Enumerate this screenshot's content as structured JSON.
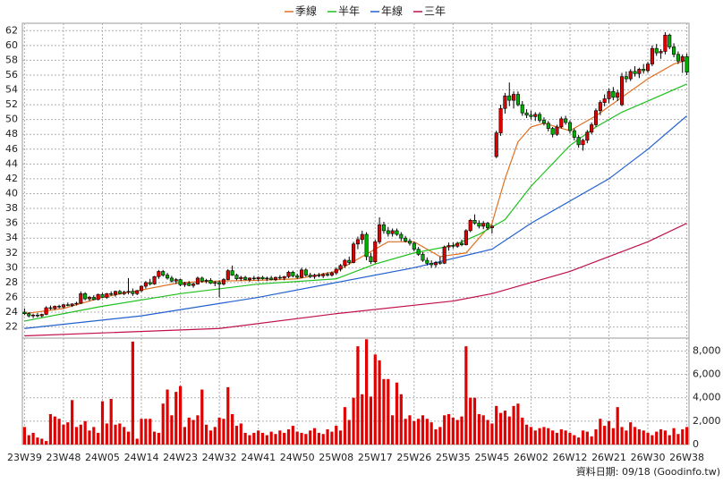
{
  "chart_data": {
    "type": "candlestick",
    "up_color": "#e00000",
    "down_color": "#00b000",
    "categories": [
      "23W39",
      null,
      null,
      null,
      null,
      null,
      null,
      null,
      null,
      "23W48",
      null,
      null,
      null,
      null,
      null,
      null,
      null,
      null,
      "24W05",
      null,
      null,
      null,
      null,
      null,
      null,
      null,
      null,
      "24W14",
      null,
      null,
      null,
      null,
      null,
      null,
      null,
      null,
      "24W23",
      null,
      null,
      null,
      null,
      null,
      null,
      null,
      null,
      "24W32",
      null,
      null,
      null,
      null,
      null,
      null,
      null,
      null,
      "24W41",
      null,
      null,
      null,
      null,
      null,
      null,
      null,
      null,
      "24W50",
      null,
      null,
      null,
      null,
      null,
      null,
      null,
      null,
      "25W08",
      null,
      null,
      null,
      null,
      null,
      null,
      null,
      null,
      "25W17",
      null,
      null,
      null,
      null,
      null,
      null,
      null,
      null,
      "25W26",
      null,
      null,
      null,
      null,
      null,
      null,
      null,
      null,
      "25W35",
      null,
      null,
      null,
      null,
      null,
      null,
      null,
      null,
      "25W45",
      null,
      null,
      null,
      null,
      null,
      null,
      null,
      null,
      "26W02",
      null,
      null,
      null,
      null,
      null,
      null,
      null,
      null,
      "26W12",
      null,
      null,
      null,
      null,
      null,
      null,
      null,
      null,
      "26W21",
      null,
      null,
      null,
      null,
      null,
      null,
      null,
      null,
      "26W30",
      null,
      null,
      null,
      null,
      null,
      null,
      null,
      null,
      "26W38"
    ],
    "ohlc": [
      [
        24,
        24.5,
        23.6,
        23.8
      ],
      [
        23.8,
        24,
        23.3,
        23.5
      ],
      [
        23.5,
        23.8,
        23.2,
        23.6
      ],
      [
        23.6,
        23.9,
        23.3,
        23.5
      ],
      [
        23.5,
        23.8,
        23.3,
        23.7
      ],
      [
        23.7,
        24.8,
        23.6,
        24.6
      ],
      [
        24.6,
        24.9,
        24.3,
        24.5
      ],
      [
        24.5,
        24.9,
        24.3,
        24.8
      ],
      [
        24.8,
        25,
        24.5,
        24.7
      ],
      [
        24.7,
        25.1,
        24.5,
        25
      ],
      [
        25,
        25.3,
        24.8,
        24.9
      ],
      [
        24.9,
        25.2,
        24.7,
        25.1
      ],
      [
        25.1,
        25.4,
        24.9,
        25.2
      ],
      [
        25.2,
        26.8,
        25.1,
        26.5
      ],
      [
        26.5,
        26.7,
        25.6,
        25.8
      ],
      [
        25.8,
        26.2,
        25.5,
        26
      ],
      [
        26,
        26.3,
        25.6,
        25.7
      ],
      [
        25.7,
        26.5,
        25.6,
        26.4
      ],
      [
        26.4,
        26.6,
        25.9,
        26
      ],
      [
        26,
        26.6,
        25.8,
        26.5
      ],
      [
        26.5,
        26.8,
        26.2,
        26.4
      ],
      [
        26.4,
        26.9,
        26.1,
        26.8
      ],
      [
        26.8,
        27,
        26.4,
        26.5
      ],
      [
        26.5,
        26.9,
        26.3,
        26.7
      ],
      [
        26.7,
        28.6,
        26.4,
        26.8
      ],
      [
        26.8,
        27.2,
        26.2,
        26.5
      ],
      [
        26.5,
        27,
        26.3,
        26.9
      ],
      [
        26.9,
        27.6,
        26.7,
        27.5
      ],
      [
        27.5,
        28.2,
        27.2,
        28
      ],
      [
        28,
        28.5,
        27.6,
        27.8
      ],
      [
        27.8,
        28.9,
        27.7,
        28.8
      ],
      [
        28.8,
        29.7,
        28.5,
        29.5
      ],
      [
        29.5,
        29.7,
        28.8,
        29
      ],
      [
        29,
        29.3,
        28.4,
        28.6
      ],
      [
        28.6,
        28.9,
        28,
        28.2
      ],
      [
        28.2,
        28.6,
        27.8,
        28.4
      ],
      [
        28.4,
        28.5,
        27.5,
        27.7
      ],
      [
        27.7,
        28.1,
        27.4,
        27.9
      ],
      [
        27.9,
        28.2,
        27.5,
        27.6
      ],
      [
        27.6,
        28,
        27.3,
        27.8
      ],
      [
        27.8,
        28.8,
        27.7,
        28.6
      ],
      [
        28.6,
        28.8,
        28,
        28.2
      ],
      [
        28.2,
        28.5,
        27.9,
        28.3
      ],
      [
        28.3,
        28.6,
        27.8,
        27.9
      ],
      [
        27.9,
        28.2,
        27.5,
        28
      ],
      [
        28,
        28.3,
        26,
        27.8
      ],
      [
        27.8,
        28.6,
        27.6,
        28.4
      ],
      [
        28.4,
        29.8,
        28.3,
        29.6
      ],
      [
        29.6,
        30.3,
        28.9,
        29
      ],
      [
        29,
        29.2,
        28.3,
        28.5
      ],
      [
        28.5,
        28.9,
        28.2,
        28.7
      ],
      [
        28.7,
        28.9,
        28.3,
        28.4
      ],
      [
        28.4,
        28.7,
        28.1,
        28.6
      ],
      [
        28.6,
        28.9,
        28.3,
        28.5
      ],
      [
        28.5,
        28.8,
        28.2,
        28.7
      ],
      [
        28.7,
        28.9,
        28.4,
        28.5
      ],
      [
        28.5,
        28.8,
        28.2,
        28.6
      ],
      [
        28.6,
        28.9,
        28.3,
        28.4
      ],
      [
        28.4,
        28.8,
        28.2,
        28.7
      ],
      [
        28.7,
        29,
        28.4,
        28.6
      ],
      [
        28.6,
        28.9,
        28.3,
        28.8
      ],
      [
        28.8,
        29.6,
        28.6,
        29.4
      ],
      [
        29.4,
        29.6,
        28.7,
        28.9
      ],
      [
        28.9,
        29.2,
        28.5,
        28.7
      ],
      [
        28.7,
        30,
        28.6,
        29.7
      ],
      [
        29.7,
        29.9,
        28.8,
        29
      ],
      [
        29,
        29.3,
        28.6,
        28.8
      ],
      [
        28.8,
        29.2,
        28.5,
        29
      ],
      [
        29,
        29.3,
        28.7,
        28.9
      ],
      [
        28.9,
        29.3,
        28.6,
        29.1
      ],
      [
        29.1,
        29.4,
        28.8,
        29
      ],
      [
        29,
        29.5,
        28.8,
        29.3
      ],
      [
        29.3,
        30,
        29.1,
        29.8
      ],
      [
        29.8,
        30.5,
        29.5,
        30.3
      ],
      [
        30.3,
        31.2,
        30,
        31
      ],
      [
        31,
        31.5,
        30.4,
        30.7
      ],
      [
        30.7,
        33.5,
        30.6,
        33.2
      ],
      [
        33.2,
        34.2,
        32.5,
        33.8
      ],
      [
        33.8,
        35,
        33.2,
        34.5
      ],
      [
        34.5,
        34.8,
        31,
        31.5
      ],
      [
        31.5,
        32,
        30.5,
        30.8
      ],
      [
        30.8,
        33.8,
        30.6,
        33.5
      ],
      [
        33.5,
        36.8,
        33.2,
        35.8
      ],
      [
        35.8,
        36.2,
        34.6,
        35
      ],
      [
        35,
        35.5,
        34.2,
        34.6
      ],
      [
        34.6,
        35.3,
        34.2,
        35
      ],
      [
        35,
        35.3,
        34.3,
        34.5
      ],
      [
        34.5,
        34.8,
        33.6,
        34
      ],
      [
        34,
        34.3,
        33.4,
        33.6
      ],
      [
        33.6,
        33.9,
        33,
        33.3
      ],
      [
        33.3,
        33.5,
        32.2,
        32.5
      ],
      [
        32.5,
        32.8,
        31.6,
        31.8
      ],
      [
        31.8,
        32.1,
        30.8,
        31
      ],
      [
        31,
        31.4,
        30.3,
        30.6
      ],
      [
        30.6,
        31,
        30,
        30.4
      ],
      [
        30.4,
        30.9,
        30,
        30.7
      ],
      [
        30.7,
        31.5,
        30.4,
        30.6
      ],
      [
        30.6,
        33,
        30.5,
        32.8
      ],
      [
        32.8,
        33.4,
        32.3,
        33
      ],
      [
        33,
        33.4,
        32.6,
        32.9
      ],
      [
        32.9,
        33.5,
        32.7,
        33.3
      ],
      [
        33.3,
        33.8,
        32.9,
        33.1
      ],
      [
        33.1,
        35.2,
        33,
        35
      ],
      [
        35,
        36.6,
        34.8,
        36.4
      ],
      [
        36.4,
        37.2,
        35.8,
        36
      ],
      [
        36,
        36.4,
        35.3,
        35.6
      ],
      [
        35.6,
        36.3,
        35.2,
        36
      ],
      [
        36,
        36.2,
        35.1,
        35.4
      ],
      [
        35.4,
        35.8,
        34.6,
        35.6
      ],
      [
        45,
        48.5,
        44.8,
        48.2
      ],
      [
        48.2,
        52,
        47.8,
        51.5
      ],
      [
        51.5,
        53.6,
        50.8,
        53.2
      ],
      [
        53.2,
        55,
        51.8,
        52.6
      ],
      [
        52.6,
        53.8,
        51.5,
        53.4
      ],
      [
        53.4,
        53.8,
        51.8,
        52
      ],
      [
        52,
        52.5,
        50.5,
        50.9
      ],
      [
        50.9,
        51.4,
        50.2,
        50.6
      ],
      [
        50.6,
        51.2,
        50,
        50.4
      ],
      [
        50.4,
        51,
        49.8,
        50.7
      ],
      [
        50.7,
        51,
        49.6,
        49.9
      ],
      [
        49.9,
        50.3,
        49.2,
        49.5
      ],
      [
        49.5,
        49.8,
        48.4,
        48.8
      ],
      [
        48.8,
        49,
        47.6,
        48
      ],
      [
        48,
        49.3,
        47.8,
        49
      ],
      [
        49,
        50.4,
        48.8,
        50.1
      ],
      [
        50.1,
        50.5,
        49.3,
        49.6
      ],
      [
        49.6,
        49.9,
        48.1,
        48.5
      ],
      [
        48.5,
        48.8,
        47.2,
        47.6
      ],
      [
        47.6,
        47.9,
        46.2,
        46.6
      ],
      [
        46.6,
        47.4,
        45.8,
        47.2
      ],
      [
        47.2,
        48.6,
        46.8,
        48.3
      ],
      [
        48.3,
        49.6,
        48,
        49.3
      ],
      [
        49.3,
        51.5,
        49,
        51.2
      ],
      [
        51.2,
        52.6,
        50.6,
        52.3
      ],
      [
        52.3,
        53.4,
        51.8,
        52.8
      ],
      [
        52.8,
        54.2,
        52.2,
        53.8
      ],
      [
        53.8,
        54.4,
        52.6,
        53
      ],
      [
        53,
        54,
        52.5,
        53.6
      ],
      [
        52,
        56.3,
        51.8,
        55.8
      ],
      [
        55.8,
        56.5,
        55,
        55.5
      ],
      [
        55.5,
        56.8,
        55.2,
        56.5
      ],
      [
        56.5,
        57.2,
        55.8,
        56.2
      ],
      [
        56.2,
        57,
        55.6,
        56.8
      ],
      [
        56.8,
        57.5,
        56.2,
        56.6
      ],
      [
        56.6,
        57.8,
        56.3,
        57.5
      ],
      [
        57.5,
        60,
        57.2,
        59.6
      ],
      [
        59.6,
        60.2,
        58.6,
        59
      ],
      [
        59,
        59.5,
        58.2,
        59.2
      ],
      [
        59.2,
        61.8,
        58.8,
        61.4
      ],
      [
        61.4,
        61.6,
        59.5,
        59.8
      ],
      [
        59.8,
        60.3,
        58.4,
        58.8
      ],
      [
        58.8,
        59.2,
        57.5,
        57.9
      ],
      [
        57.9,
        58.8,
        56.3,
        58.5
      ],
      [
        58.5,
        58.9,
        56,
        56.4
      ]
    ],
    "ylim": [
      20.5,
      63
    ],
    "yticks": [
      22,
      24,
      26,
      28,
      30,
      32,
      34,
      36,
      38,
      40,
      42,
      44,
      46,
      48,
      50,
      52,
      54,
      56,
      58,
      60,
      62
    ],
    "grid": true,
    "series": [
      {
        "name": "季線",
        "color": "#e07020",
        "x": [
          0,
          9,
          18,
          27,
          36,
          45,
          54,
          63,
          72,
          78,
          84,
          90,
          96,
          102,
          108,
          111,
          114,
          117,
          120,
          126,
          132,
          138,
          144,
          150,
          153
        ],
        "values": [
          23.8,
          24.5,
          26,
          27,
          28,
          28.2,
          28.3,
          28.5,
          29.5,
          31.5,
          33.5,
          33.5,
          31.5,
          32,
          36,
          42,
          47,
          49,
          49.5,
          48.5,
          50.5,
          53,
          55.5,
          57.5,
          58
        ]
      },
      {
        "name": "半年",
        "color": "#20c020",
        "x": [
          0,
          18,
          36,
          54,
          72,
          81,
          90,
          99,
          105,
          111,
          117,
          126,
          132,
          138,
          144,
          153
        ],
        "values": [
          22.8,
          24.8,
          26.5,
          27.8,
          28.5,
          30.5,
          32,
          33,
          34.5,
          36.5,
          41,
          46.5,
          49,
          51,
          52.5,
          54.8
        ]
      },
      {
        "name": "年線",
        "color": "#2060d0",
        "x": [
          0,
          27,
          54,
          72,
          90,
          108,
          117,
          126,
          135,
          144,
          153
        ],
        "values": [
          21.8,
          23.5,
          26,
          28,
          30,
          32.5,
          36,
          39,
          42,
          46,
          50.5
        ]
      },
      {
        "name": "三年",
        "color": "#c0104a",
        "x": [
          0,
          45,
          72,
          99,
          108,
          126,
          144,
          153
        ],
        "values": [
          20.8,
          21.8,
          23.8,
          25.5,
          26.5,
          29.5,
          33.5,
          36
        ]
      }
    ],
    "volume": {
      "color": "#e00000",
      "values": [
        1500,
        800,
        1000,
        600,
        500,
        300,
        2600,
        2400,
        2200,
        1700,
        1900,
        3800,
        1500,
        1700,
        2000,
        1200,
        1500,
        1000,
        3700,
        1800,
        3900,
        1700,
        1800,
        1500,
        1100,
        8800,
        500,
        2200,
        2200,
        2200,
        1100,
        1000,
        3500,
        4700,
        2500,
        4500,
        5000,
        1500,
        2300,
        2100,
        2500,
        4700,
        1700,
        1200,
        1500,
        2300,
        2200,
        4900,
        2600,
        1600,
        1800,
        1000,
        800,
        1000,
        1200,
        1000,
        800,
        1100,
        900,
        1200,
        1000,
        1300,
        1600,
        1100,
        1000,
        900,
        1200,
        1400,
        1000,
        900,
        1300,
        1100,
        1600,
        1200,
        3200,
        2100,
        4000,
        8400,
        4300,
        9000,
        4100,
        7700,
        7200,
        5600,
        5600,
        2500,
        5300,
        4300,
        2200,
        2500,
        2000,
        2200,
        2500,
        2200,
        1900,
        1300,
        1500,
        2500,
        2600,
        2300,
        2100,
        2400,
        8400,
        4000,
        4000,
        2600,
        2500,
        2100,
        1800,
        3300,
        2700,
        2900,
        2400,
        3300,
        3500,
        2300,
        1700,
        1500,
        1200,
        1400,
        1500,
        1400,
        1200,
        1000,
        1300,
        1200,
        1000,
        800,
        600,
        1200,
        1100,
        700,
        1300,
        2200,
        1600,
        2000,
        1400,
        3200,
        1500,
        1200,
        1900,
        1500,
        1300,
        1200,
        1000,
        800,
        1100,
        1300,
        1200,
        800,
        1400,
        900,
        1300,
        1500
      ],
      "ylim": [
        0,
        9100
      ],
      "yticks": [
        0,
        {
          "value": 2000,
          "label": "2,000"
        },
        {
          "value": 4000,
          "label": "4,000"
        },
        {
          "value": 6000,
          "label": "6,000"
        },
        {
          "value": 8000,
          "label": "8,000"
        }
      ]
    },
    "footnote": "資料日期: 09/18 (Goodinfo.tw)"
  }
}
